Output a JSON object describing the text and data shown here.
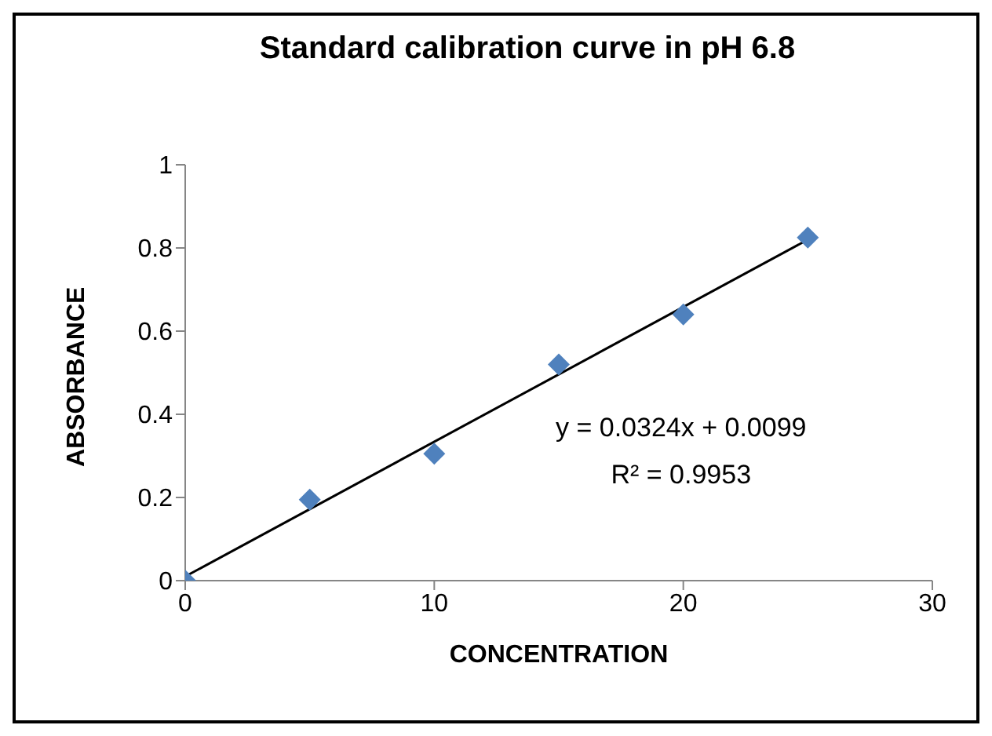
{
  "chart_data": {
    "type": "scatter",
    "title": "Standard calibration curve in pH 6.8",
    "xlabel": "CONCENTRATION",
    "ylabel": "ABSORBANCE",
    "xlim": [
      0,
      30
    ],
    "xticks": [
      0,
      10,
      20,
      30
    ],
    "ylim": [
      0,
      1
    ],
    "yticks": [
      0,
      0.2,
      0.4,
      0.6,
      0.8,
      1
    ],
    "grid": false,
    "legend": false,
    "annotations": [
      "y = 0.0324x + 0.0099",
      "R² = 0.9953"
    ],
    "series": [
      {
        "type": "scatter",
        "color": "#4f81bd",
        "marker": "diamond",
        "x": [
          0,
          5,
          10,
          15,
          20,
          25
        ],
        "values": [
          0,
          0.195,
          0.305,
          0.52,
          0.64,
          0.825
        ]
      },
      {
        "type": "line",
        "color": "#000000",
        "marker": "none",
        "x": [
          0,
          25
        ],
        "values": [
          0.01,
          0.82
        ]
      }
    ]
  }
}
